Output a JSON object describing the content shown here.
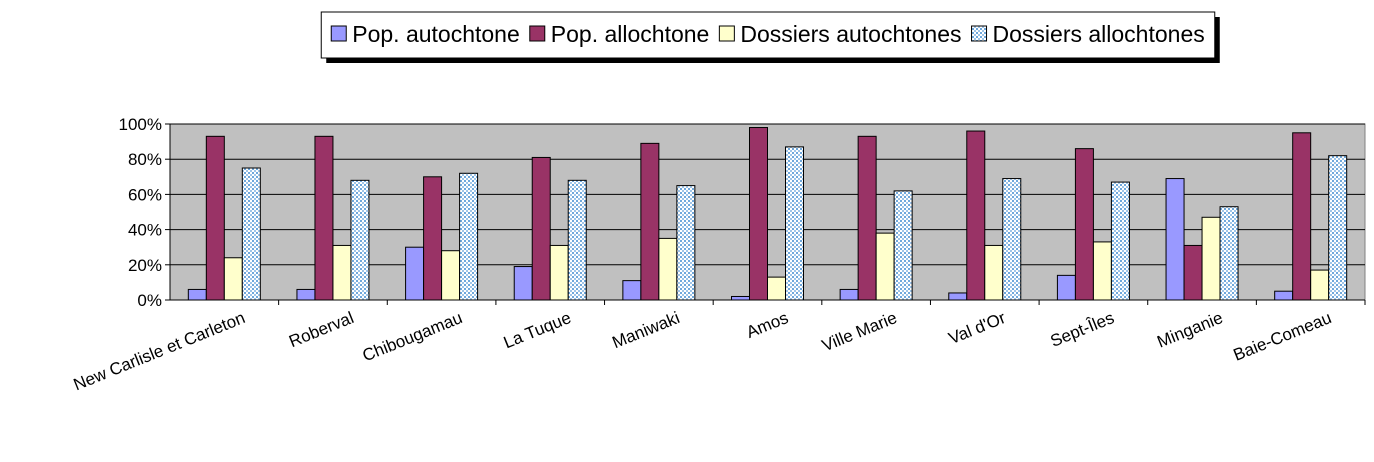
{
  "chart_data": {
    "type": "bar",
    "categories": [
      "New Carlisle et Carleton",
      "Roberval",
      "Chibougamau",
      "La Tuque",
      "Maniwaki",
      "Amos",
      "Ville Marie",
      "Val d'Or",
      "Sept-Îles",
      "Minganie",
      "Baie-Comeau"
    ],
    "series": [
      {
        "name": "Pop. autochtone",
        "color": "#9999ff",
        "values": [
          6,
          6,
          30,
          19,
          11,
          2,
          6,
          4,
          14,
          69,
          5
        ]
      },
      {
        "name": "Pop. allochtone",
        "color": "#993366",
        "values": [
          93,
          93,
          70,
          81,
          89,
          98,
          93,
          96,
          86,
          31,
          95
        ]
      },
      {
        "name": "Dossiers autochtones",
        "color": "#ffffcc",
        "values": [
          24,
          31,
          28,
          31,
          35,
          13,
          38,
          31,
          33,
          47,
          17
        ]
      },
      {
        "name": "Dossiers allochtones",
        "color": "#a6caf0",
        "pattern": "dotted",
        "values": [
          75,
          68,
          72,
          68,
          65,
          87,
          62,
          69,
          67,
          53,
          82
        ]
      }
    ],
    "ylim": [
      0,
      100
    ],
    "yticks": [
      {
        "value": 0,
        "label": "0%"
      },
      {
        "value": 20,
        "label": "20%"
      },
      {
        "value": 40,
        "label": "40%"
      },
      {
        "value": 60,
        "label": "60%"
      },
      {
        "value": 80,
        "label": "80%"
      },
      {
        "value": 100,
        "label": "100%"
      }
    ],
    "grid": true,
    "legend": "top"
  }
}
